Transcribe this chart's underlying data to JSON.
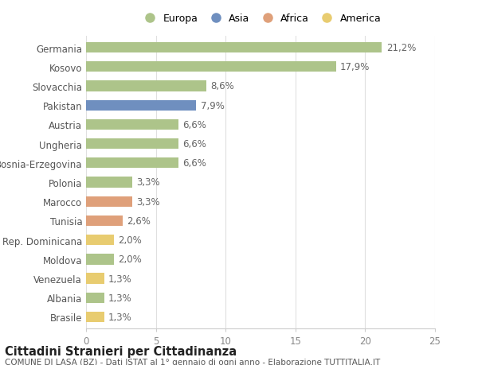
{
  "countries": [
    "Germania",
    "Kosovo",
    "Slovacchia",
    "Pakistan",
    "Austria",
    "Ungheria",
    "Bosnia-Erzegovina",
    "Polonia",
    "Marocco",
    "Tunisia",
    "Rep. Dominicana",
    "Moldova",
    "Venezuela",
    "Albania",
    "Brasile"
  ],
  "values": [
    21.2,
    17.9,
    8.6,
    7.9,
    6.6,
    6.6,
    6.6,
    3.3,
    3.3,
    2.6,
    2.0,
    2.0,
    1.3,
    1.3,
    1.3
  ],
  "labels": [
    "21,2%",
    "17,9%",
    "8,6%",
    "7,9%",
    "6,6%",
    "6,6%",
    "6,6%",
    "3,3%",
    "3,3%",
    "2,6%",
    "2,0%",
    "2,0%",
    "1,3%",
    "1,3%",
    "1,3%"
  ],
  "continents": [
    "Europa",
    "Europa",
    "Europa",
    "Asia",
    "Europa",
    "Europa",
    "Europa",
    "Europa",
    "Africa",
    "Africa",
    "America",
    "Europa",
    "America",
    "Europa",
    "America"
  ],
  "colors": {
    "Europa": "#adc48a",
    "Asia": "#6f8fbf",
    "Africa": "#dfa07a",
    "America": "#e8cc70"
  },
  "xlim": [
    0,
    25
  ],
  "xticks": [
    0,
    5,
    10,
    15,
    20,
    25
  ],
  "bg_color": "#ffffff",
  "grid_color": "#e0e0e0",
  "title": "Cittadini Stranieri per Cittadinanza",
  "subtitle": "COMUNE DI LASA (BZ) - Dati ISTAT al 1° gennaio di ogni anno - Elaborazione TUTTITALIA.IT",
  "bar_height": 0.55,
  "label_fontsize": 8.5,
  "tick_fontsize": 8.5,
  "title_fontsize": 10.5,
  "subtitle_fontsize": 7.5,
  "legend_items": [
    "Europa",
    "Asia",
    "Africa",
    "America"
  ]
}
